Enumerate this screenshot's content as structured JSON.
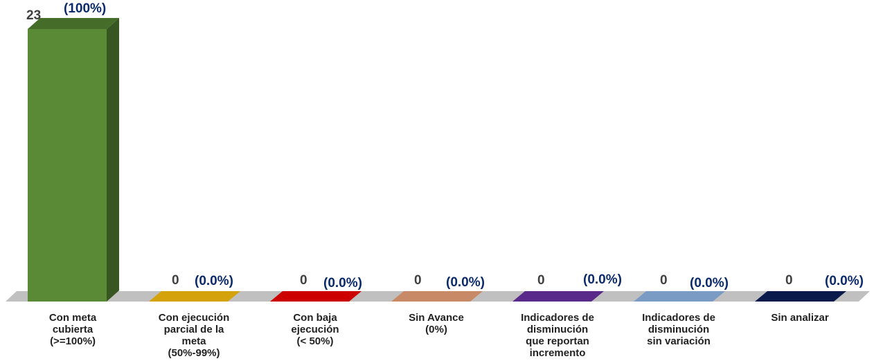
{
  "chart_data": {
    "type": "bar",
    "title": "",
    "xlabel": "",
    "ylabel": "",
    "ylim": [
      0,
      23
    ],
    "grid": false,
    "legend": "none",
    "style": "3d",
    "value_color": "#404040",
    "percent_color": "#0b2a6b",
    "floor_color": "#c0c0c0",
    "categories": [
      [
        "Con meta",
        "cubierta",
        "(>=100%)"
      ],
      [
        "Con ejecución",
        "parcial de la",
        "meta",
        "(50%-99%)"
      ],
      [
        "Con baja",
        "ejecución",
        "(< 50%)"
      ],
      [
        "Sin Avance",
        "(0%)"
      ],
      [
        "Indicadores de",
        "disminución",
        "que reportan",
        "incremento"
      ],
      [
        "Indicadores de",
        "disminución",
        "sin variación"
      ],
      [
        "Sin analizar"
      ]
    ],
    "values": [
      23,
      0,
      0,
      0,
      0,
      0,
      0
    ],
    "value_labels": [
      "23",
      "0",
      "0",
      "0",
      "0",
      "0",
      "0"
    ],
    "percent_labels": [
      "(100%)",
      "(0.0%)",
      "(0.0%)",
      "(0.0%)",
      "(0.0%)",
      "(0.0%)",
      "(0.0%)"
    ],
    "colors": [
      "#5a8a36",
      "#d4a20a",
      "#cc0000",
      "#c88a66",
      "#5a2a8a",
      "#7a9cc4",
      "#0a1a4a"
    ]
  }
}
